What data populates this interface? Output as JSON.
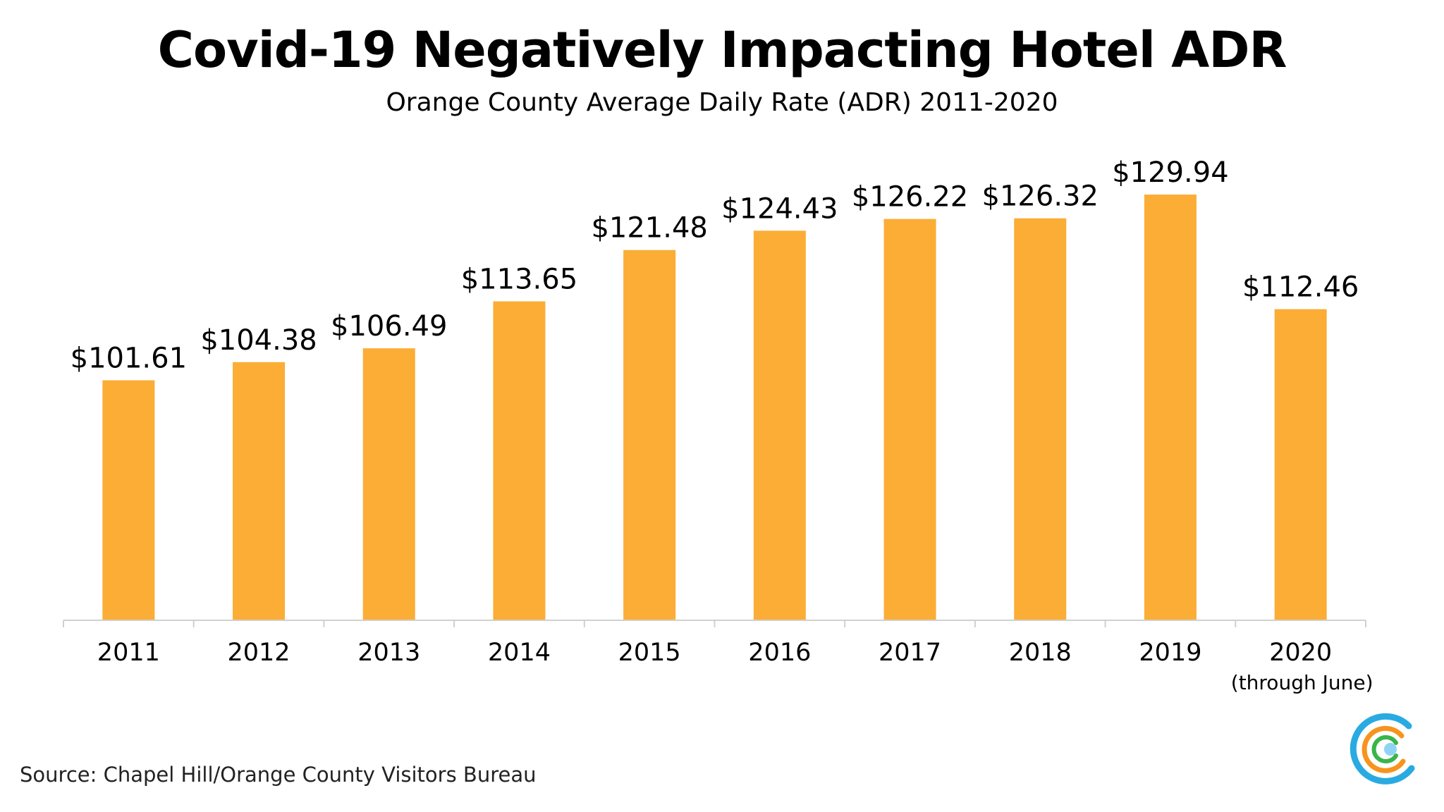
{
  "slide": {
    "title": "Covid-19 Negatively Impacting Hotel ADR",
    "subtitle": "Orange County Average Daily Rate (ADR) 2011-2020",
    "source": "Source: Chapel Hill/Orange County Visitors Bureau"
  },
  "colors": {
    "bar": "#FBAD35",
    "axis": "#D0D0D0",
    "logo_blue": "#29ABE2",
    "logo_orange": "#F7941D",
    "logo_green": "#39B54A",
    "logo_light_blue": "#8FD3F4"
  },
  "chart_data": {
    "type": "bar",
    "title": "Covid-19 Negatively Impacting Hotel ADR",
    "subtitle": "Orange County Average Daily Rate (ADR) 2011-2020",
    "categories": [
      "2011",
      "2012",
      "2013",
      "2014",
      "2015",
      "2016",
      "2017",
      "2018",
      "2019",
      "2020"
    ],
    "category_sublabels": [
      "",
      "",
      "",
      "",
      "",
      "",
      "",
      "",
      "",
      "(through June)"
    ],
    "values": [
      101.61,
      104.38,
      106.49,
      113.65,
      121.48,
      124.43,
      126.22,
      126.32,
      129.94,
      112.46
    ],
    "data_labels": [
      "$101.61",
      "$104.38",
      "$106.49",
      "$113.65",
      "$121.48",
      "$124.43",
      "$126.22",
      "$126.32",
      "$129.94",
      "$112.46"
    ],
    "xlabel": "",
    "ylabel": "",
    "ylim": [
      65,
      135
    ],
    "grid": false,
    "legend": "none"
  }
}
